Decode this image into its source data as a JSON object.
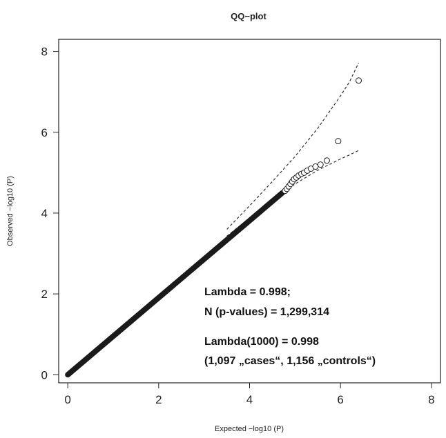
{
  "chart_data": {
    "type": "scatter",
    "title": "QQ−plot",
    "xlabel": "Expected −log10 (P)",
    "ylabel": "Observed −log10 (P)",
    "xlim": [
      -0.2,
      8.2
    ],
    "ylim": [
      -0.2,
      8.3
    ],
    "xticks": [
      "0",
      "2",
      "4",
      "6",
      "8"
    ],
    "yticks": [
      "0",
      "2",
      "4",
      "6",
      "8"
    ],
    "grid": false,
    "legend": "none",
    "colors": {
      "points": "#1a1a1a",
      "axes": "#222222",
      "band": "#333333"
    },
    "line_segment": {
      "x": [
        0,
        4.72
      ],
      "y": [
        0,
        4.5
      ]
    },
    "outlier_points": [
      {
        "x": 4.78,
        "y": 4.55
      },
      {
        "x": 4.82,
        "y": 4.6
      },
      {
        "x": 4.86,
        "y": 4.66
      },
      {
        "x": 4.9,
        "y": 4.72
      },
      {
        "x": 4.94,
        "y": 4.78
      },
      {
        "x": 4.98,
        "y": 4.84
      },
      {
        "x": 5.03,
        "y": 4.88
      },
      {
        "x": 5.08,
        "y": 4.93
      },
      {
        "x": 5.14,
        "y": 4.97
      },
      {
        "x": 5.2,
        "y": 5.0
      },
      {
        "x": 5.27,
        "y": 5.05
      },
      {
        "x": 5.35,
        "y": 5.1
      },
      {
        "x": 5.45,
        "y": 5.15
      },
      {
        "x": 5.56,
        "y": 5.2
      },
      {
        "x": 5.7,
        "y": 5.3
      },
      {
        "x": 5.95,
        "y": 5.78
      },
      {
        "x": 6.4,
        "y": 7.28
      }
    ],
    "confidence_upper": {
      "x": [
        3.5,
        4.0,
        4.5,
        5.0,
        5.5,
        6.0,
        6.2,
        6.4
      ],
      "y": [
        3.6,
        4.18,
        4.78,
        5.4,
        6.1,
        6.9,
        7.25,
        7.72
      ]
    },
    "confidence_lower": {
      "x": [
        3.5,
        4.0,
        4.5,
        5.0,
        5.5,
        6.0,
        6.2,
        6.4
      ],
      "y": [
        3.43,
        3.88,
        4.32,
        4.72,
        5.06,
        5.34,
        5.44,
        5.55
      ]
    },
    "annotations": {
      "line1": "Lambda = 0.998;",
      "line2": "N (p-values) = 1,299,314",
      "line3": "Lambda(1000) = 0.998",
      "line4": "(1,097 „cases“, 1,156 „controls“)"
    }
  }
}
